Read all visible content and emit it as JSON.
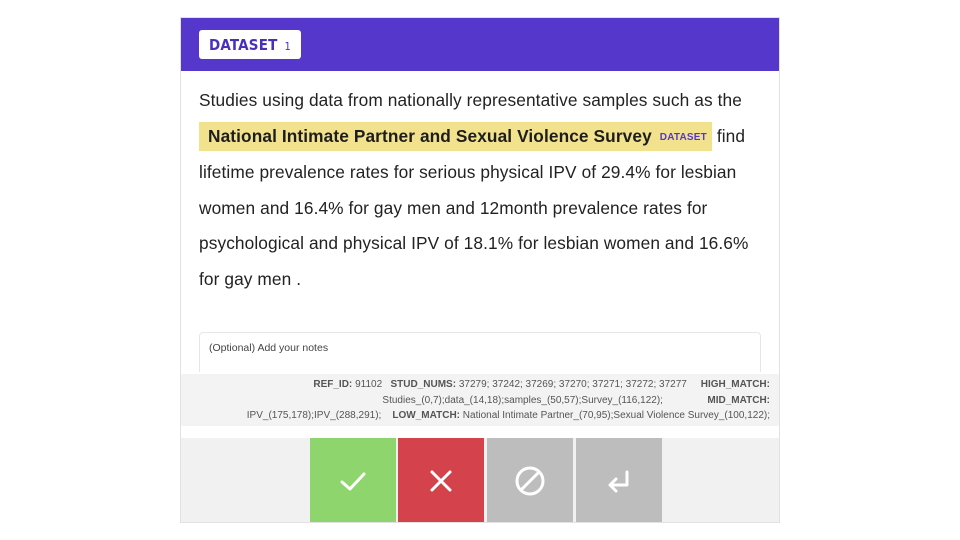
{
  "header": {
    "badge_label": "DATASET",
    "badge_count": "1"
  },
  "passage": {
    "line1": "Studies using data from nationally representative samples such as the",
    "highlight": "National Intimate Partner and Sexual Violence Survey",
    "highlight_tag": "DATASET",
    "after_highlight": "find",
    "rest": "lifetime prevalence rates for serious physical IPV of 29.4% for lesbian women and 16.4% for gay men and 12month prevalence rates for psychological and physical IPV of 18.1% for lesbian women and 16.6% for gay men ."
  },
  "notes": {
    "placeholder": "(Optional) Add your notes"
  },
  "meta": {
    "ref_id_label": "REF_ID:",
    "ref_id": "91102",
    "stud_nums_label": "STUD_NUMS:",
    "stud_nums": "37279; 37242; 37269; 37270; 37271; 37272; 37277",
    "high_match_label": "HIGH_MATCH:",
    "high_match": "Studies_(0,7);data_(14,18);samples_(50,57);Survey_(116,122);",
    "mid_match_label": "MID_MATCH:",
    "mid_match": "IPV_(175,178);IPV_(288,291);",
    "low_match_label": "LOW_MATCH:",
    "low_match": "National Intimate Partner_(70,95);Sexual Violence Survey_(100,122);"
  },
  "actions": {
    "accept_icon": "check-icon",
    "reject_icon": "x-icon",
    "skip_icon": "ban-icon",
    "back_icon": "return-icon",
    "colors": {
      "accept": "#8fd56e",
      "reject": "#d4424b",
      "neutral": "#bdbdbd",
      "header": "#5537cc",
      "highlight": "#f3e28d"
    }
  }
}
